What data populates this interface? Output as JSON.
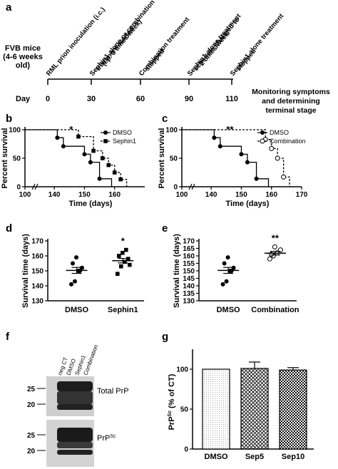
{
  "panel_labels": {
    "a": "a",
    "b": "b",
    "c": "c",
    "d": "d",
    "e": "e",
    "f": "f",
    "g": "g"
  },
  "timeline": {
    "mouse_label_lines": [
      "FVB mice",
      "(4-6 weeks",
      "old)"
    ],
    "day_label": "Day",
    "days": [
      "0",
      "30",
      "60",
      "90",
      "110"
    ],
    "events": [
      {
        "lines": [
          "RML prion inoculation (i.c.)"
        ]
      },
      {
        "lines": [
          "Sephin1 alone or combination",
          "treatment started",
          "(i.p. 3 times/week)"
        ]
      },
      {
        "lines": [
          "Combination treatment",
          "stopped"
        ]
      },
      {
        "lines": [
          "Sephin1 alone treatment",
          "schedule changed to",
          "2 times/week"
        ]
      },
      {
        "lines": [
          "Sephin1 alone treatment",
          "stopped"
        ]
      }
    ],
    "monitoring_lines": [
      "Monitoring symptoms",
      "and determining",
      "terminal stage"
    ]
  },
  "blot": {
    "lanes": [
      "neg CT",
      "DMSO",
      "Sephin1",
      "Combination"
    ],
    "top": {
      "label": "Total PrP",
      "markers": [
        "25",
        "20"
      ]
    },
    "bottom": {
      "label_main": "PrP",
      "label_sup": "Sc",
      "markers": [
        "25",
        "20"
      ]
    }
  },
  "chart_data": [
    {
      "panel": "b",
      "type": "line",
      "xlabel": "Time (days)",
      "ylabel": "Percent survival",
      "xlim": [
        100,
        170
      ],
      "ylim": [
        0,
        100
      ],
      "xticks": [
        100,
        140,
        150,
        160
      ],
      "yticks": [
        0,
        50,
        100
      ],
      "legend_position": "top-right",
      "annotation": "*",
      "series": [
        {
          "name": "DMSO",
          "style": "solid",
          "marker": "circle",
          "x": [
            100,
            141,
            143,
            150,
            152,
            155,
            159
          ],
          "y": [
            100,
            86,
            71,
            57,
            43,
            14,
            0
          ]
        },
        {
          "name": "Sephin1",
          "style": "dashed",
          "marker": "square",
          "x": [
            100,
            148,
            153,
            156,
            158,
            160,
            162,
            164
          ],
          "y": [
            100,
            88,
            63,
            50,
            38,
            25,
            13,
            0
          ]
        }
      ]
    },
    {
      "panel": "c",
      "type": "line",
      "xlabel": "Time (days)",
      "ylabel": "Percent survival",
      "xlim": [
        100,
        170
      ],
      "ylim": [
        0,
        100
      ],
      "xticks": [
        100,
        140,
        150,
        160,
        170
      ],
      "yticks": [
        0,
        50,
        100
      ],
      "legend_position": "top-right",
      "annotation": "**",
      "series": [
        {
          "name": "DMSO",
          "style": "solid",
          "marker": "circle",
          "x": [
            100,
            141,
            143,
            150,
            152,
            155,
            159
          ],
          "y": [
            100,
            86,
            71,
            57,
            43,
            14,
            0
          ]
        },
        {
          "name": "Combination",
          "style": "dashed",
          "marker": "open-circle",
          "x": [
            100,
            158,
            160,
            162,
            164,
            166
          ],
          "y": [
            100,
            83,
            67,
            50,
            17,
            0
          ]
        }
      ]
    },
    {
      "panel": "d",
      "type": "scatter",
      "ylabel": "Survival time (days)",
      "ylim": [
        130,
        170
      ],
      "yticks": [
        130,
        140,
        150,
        160,
        170
      ],
      "categories": [
        "DMSO",
        "Sephin1"
      ],
      "means": [
        150.3,
        156.8
      ],
      "sems": [
        2.0,
        1.5
      ],
      "annotations": [
        "",
        "*"
      ],
      "series": [
        {
          "name": "DMSO",
          "marker": "filled-circle",
          "values": [
            141,
            143,
            150,
            152,
            155,
            159,
            150
          ]
        },
        {
          "name": "Sephin1",
          "marker": "filled-square",
          "values": [
            148,
            153,
            156,
            158,
            160,
            162,
            164,
            154
          ]
        }
      ]
    },
    {
      "panel": "e",
      "type": "scatter",
      "ylabel": "Survival time (days)",
      "ylim": [
        130,
        170
      ],
      "yticks": [
        130,
        135,
        140,
        145,
        150,
        155,
        160,
        165,
        170
      ],
      "categories": [
        "DMSO",
        "Combination"
      ],
      "means": [
        150.3,
        161.8
      ],
      "sems": [
        2.0,
        1.2
      ],
      "annotations": [
        "",
        "**"
      ],
      "series": [
        {
          "name": "DMSO",
          "marker": "filled-circle",
          "values": [
            141,
            143,
            150,
            152,
            155,
            159,
            150
          ]
        },
        {
          "name": "Combination",
          "marker": "open-circle",
          "values": [
            158,
            160,
            162,
            164,
            161,
            166
          ]
        }
      ]
    },
    {
      "panel": "g",
      "type": "bar",
      "ylabel_main": "PrP",
      "ylabel_sup": "Sc",
      "ylabel_rest": " (% of CT)",
      "ylim": [
        0,
        125
      ],
      "yticks": [
        0,
        50,
        100
      ],
      "categories": [
        "DMSO",
        "Sep5",
        "Sep10"
      ],
      "values": [
        100,
        101,
        99
      ],
      "errors": [
        0,
        8,
        3
      ],
      "patterns": [
        "dots",
        "crosshatch",
        "checker"
      ]
    }
  ]
}
